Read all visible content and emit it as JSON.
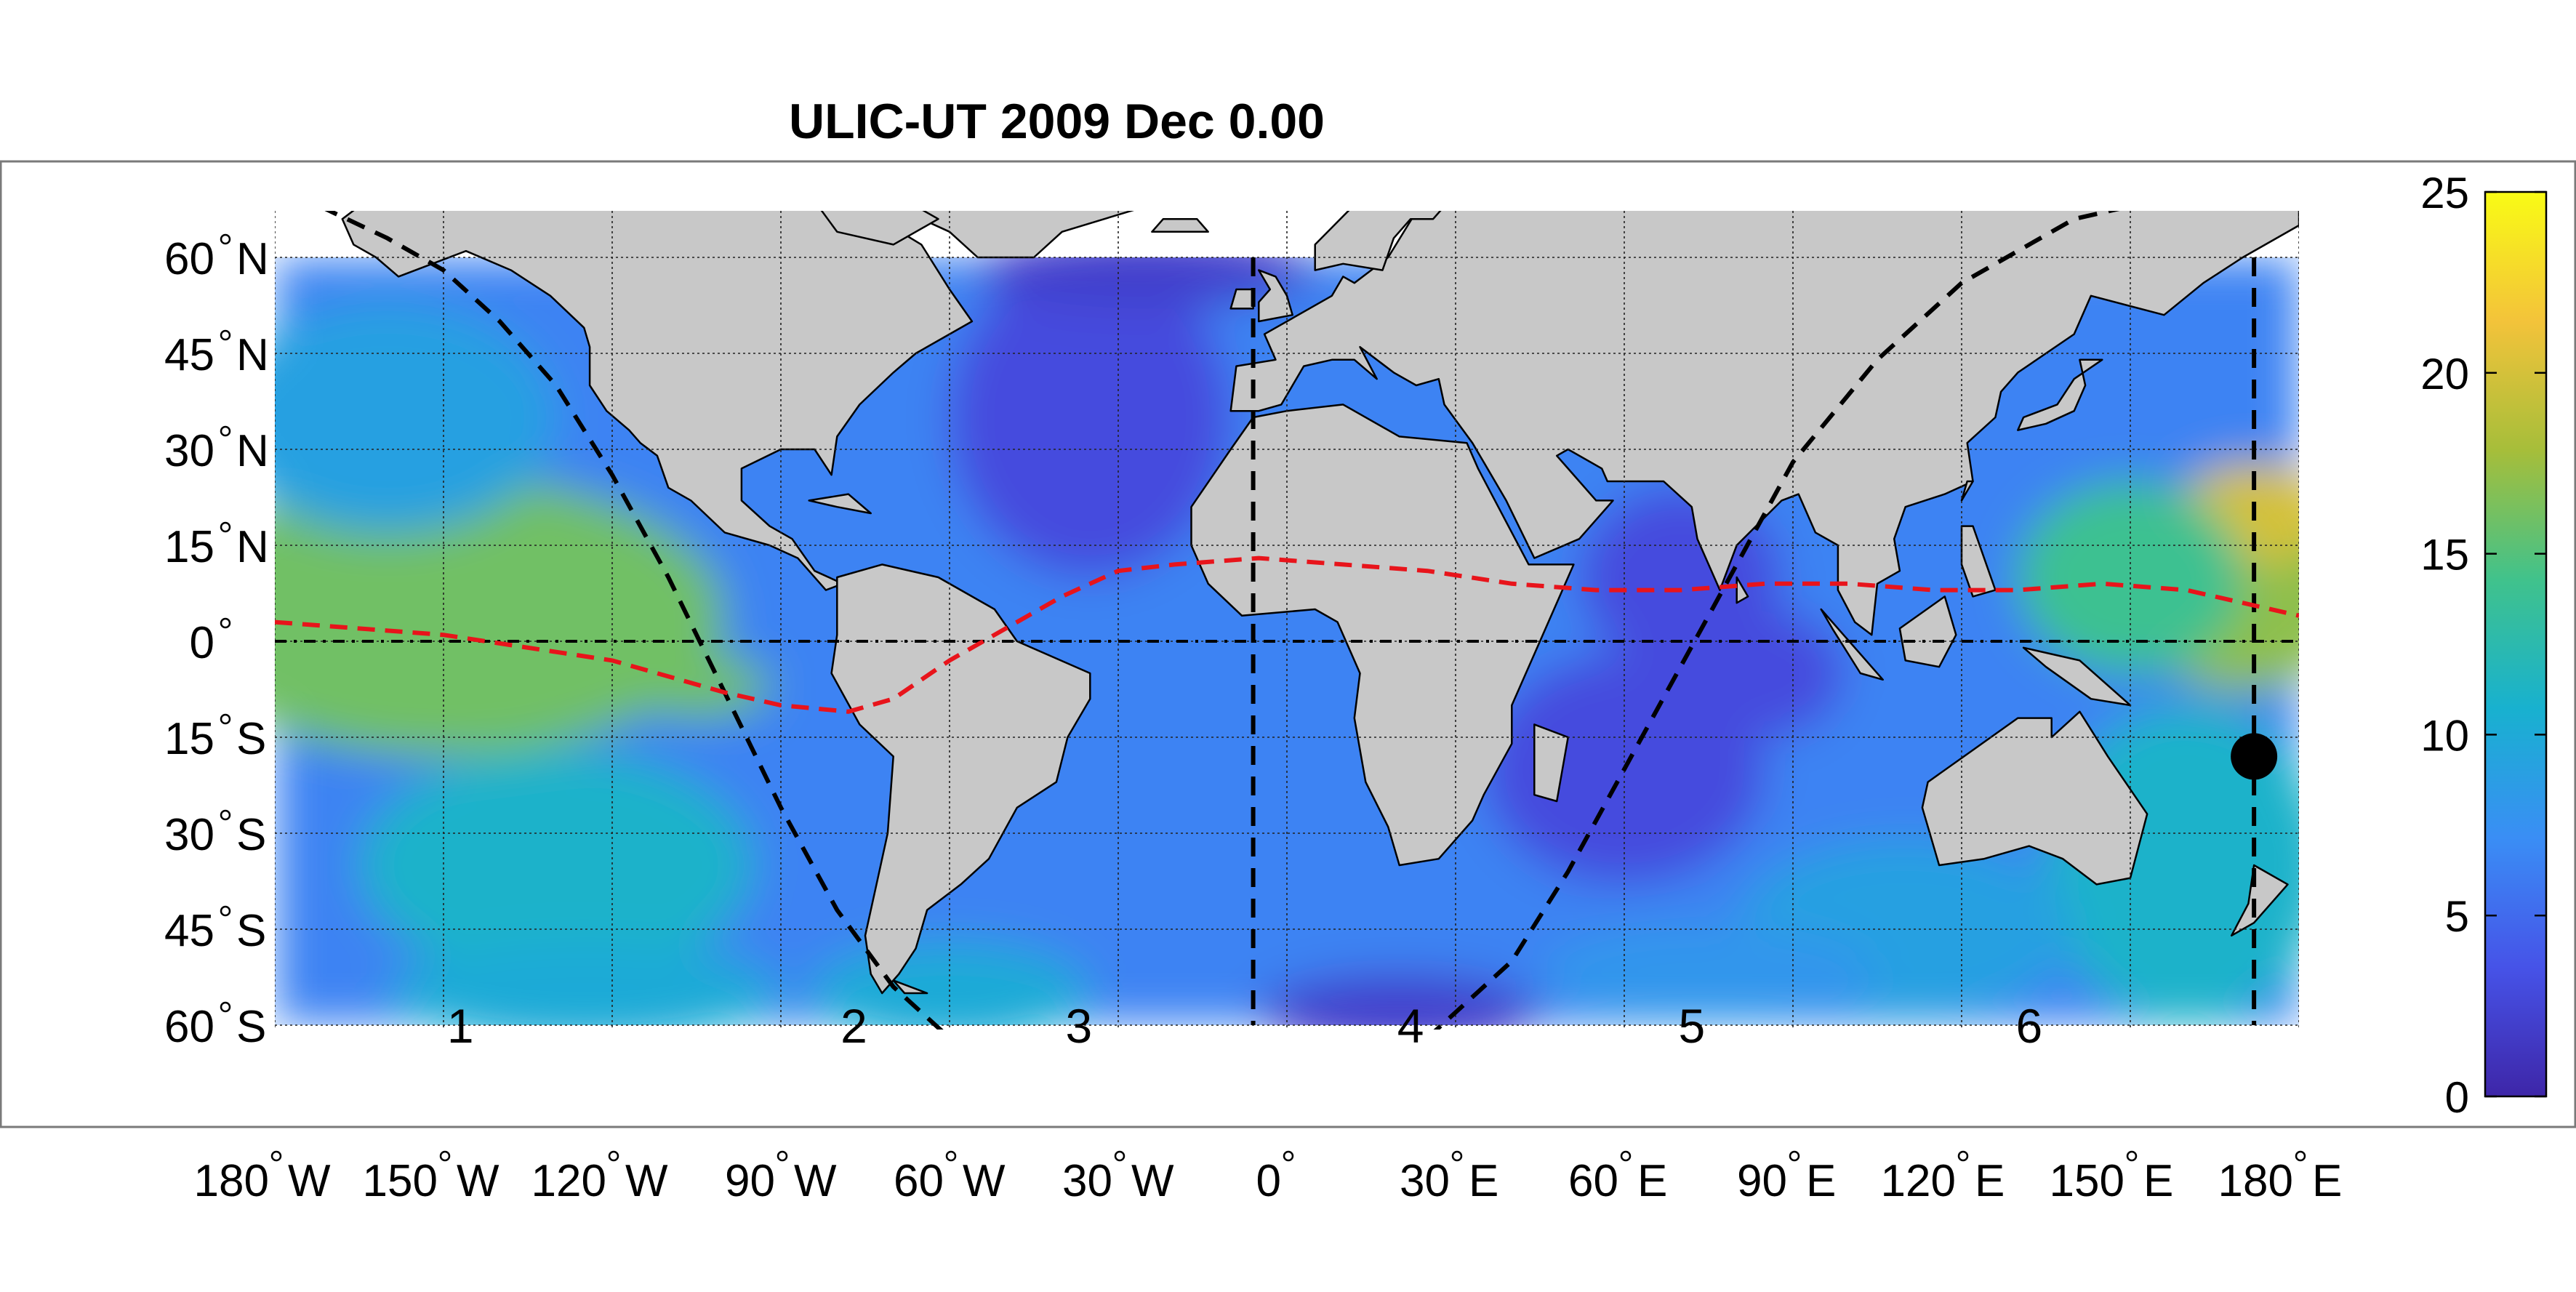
{
  "title": "ULIC-UT 2009 Dec  0.00",
  "map": {
    "type": "global_map_field",
    "projection": "equirectangular",
    "lon_range": [
      -180,
      180
    ],
    "lat_range": [
      -60,
      68
    ],
    "field_lat_range": [
      -60,
      60
    ],
    "lat_ticks": [
      {
        "value": 60,
        "deg": "60",
        "hemi": "N"
      },
      {
        "value": 45,
        "deg": "45",
        "hemi": "N"
      },
      {
        "value": 30,
        "deg": "30",
        "hemi": "N"
      },
      {
        "value": 15,
        "deg": "15",
        "hemi": "N"
      },
      {
        "value": 0,
        "deg": "0",
        "hemi": ""
      },
      {
        "value": -15,
        "deg": "15",
        "hemi": "S"
      },
      {
        "value": -30,
        "deg": "30",
        "hemi": "S"
      },
      {
        "value": -45,
        "deg": "45",
        "hemi": "S"
      },
      {
        "value": -60,
        "deg": "60",
        "hemi": "S"
      }
    ],
    "lon_ticks": [
      {
        "value": -180,
        "deg": "180",
        "hemi": "W"
      },
      {
        "value": -150,
        "deg": "150",
        "hemi": "W"
      },
      {
        "value": -120,
        "deg": "120",
        "hemi": "W"
      },
      {
        "value": -90,
        "deg": "90",
        "hemi": "W"
      },
      {
        "value": -60,
        "deg": "60",
        "hemi": "W"
      },
      {
        "value": -30,
        "deg": "30",
        "hemi": "W"
      },
      {
        "value": 0,
        "deg": "0",
        "hemi": ""
      },
      {
        "value": 30,
        "deg": "30",
        "hemi": "E"
      },
      {
        "value": 60,
        "deg": "60",
        "hemi": "E"
      },
      {
        "value": 90,
        "deg": "90",
        "hemi": "E"
      },
      {
        "value": 120,
        "deg": "120",
        "hemi": "E"
      },
      {
        "value": 150,
        "deg": "150",
        "hemi": "E"
      },
      {
        "value": 180,
        "deg": "180",
        "hemi": "E"
      }
    ],
    "region_labels": [
      {
        "text": "1",
        "lon": -147,
        "lat": -60
      },
      {
        "text": "2",
        "lon": -77,
        "lat": -60
      },
      {
        "text": "3",
        "lon": -37,
        "lat": -60
      },
      {
        "text": "4",
        "lon": 22,
        "lat": -60
      },
      {
        "text": "5",
        "lon": 72,
        "lat": -60
      },
      {
        "text": "6",
        "lon": 132,
        "lat": -60
      }
    ],
    "vertical_dividers_lon": [
      -6,
      172
    ],
    "equator_line_lat": 0,
    "red_curve": [
      [
        -180,
        3
      ],
      [
        -150,
        1
      ],
      [
        -120,
        -3
      ],
      [
        -100,
        -8
      ],
      [
        -90,
        -10
      ],
      [
        -78,
        -11
      ],
      [
        -70,
        -9
      ],
      [
        -60,
        -3
      ],
      [
        -50,
        2
      ],
      [
        -40,
        7
      ],
      [
        -30,
        11
      ],
      [
        -20,
        12
      ],
      [
        -5,
        13
      ],
      [
        10,
        12
      ],
      [
        25,
        11
      ],
      [
        40,
        9
      ],
      [
        55,
        8
      ],
      [
        70,
        8
      ],
      [
        85,
        9
      ],
      [
        100,
        9
      ],
      [
        115,
        8
      ],
      [
        130,
        8
      ],
      [
        145,
        9
      ],
      [
        160,
        8
      ],
      [
        170,
        6
      ],
      [
        180,
        4
      ]
    ],
    "black_curve_a": [
      [
        -172,
        68
      ],
      [
        -160,
        63
      ],
      [
        -150,
        58
      ],
      [
        -140,
        50
      ],
      [
        -130,
        40
      ],
      [
        -120,
        26
      ],
      [
        -110,
        10
      ],
      [
        -100,
        -8
      ],
      [
        -90,
        -26
      ],
      [
        -80,
        -42
      ],
      [
        -70,
        -54
      ],
      [
        -60,
        -62
      ],
      [
        -50,
        -68
      ]
    ],
    "black_curve_b": [
      [
        10,
        -68
      ],
      [
        25,
        -62
      ],
      [
        40,
        -50
      ],
      [
        50,
        -36
      ],
      [
        60,
        -20
      ],
      [
        70,
        -4
      ],
      [
        80,
        12
      ],
      [
        90,
        28
      ],
      [
        105,
        44
      ],
      [
        120,
        56
      ],
      [
        140,
        66
      ],
      [
        150,
        68
      ]
    ],
    "marker": {
      "lon": 172,
      "lat": -18
    },
    "blobs": [
      {
        "lon": -170,
        "lat": 4,
        "rx": 20,
        "ry": 6,
        "v": 23
      },
      {
        "lon": -150,
        "lat": 12,
        "rx": 22,
        "ry": 7,
        "v": 21
      },
      {
        "lon": -150,
        "lat": -6,
        "rx": 24,
        "ry": 8,
        "v": 22
      },
      {
        "lon": -120,
        "lat": -5,
        "rx": 18,
        "ry": 6,
        "v": 20
      },
      {
        "lon": -105,
        "lat": -7,
        "rx": 13,
        "ry": 5,
        "v": 16
      },
      {
        "lon": -150,
        "lat": 4,
        "rx": 50,
        "ry": 22,
        "v": 16
      },
      {
        "lon": -160,
        "lat": 35,
        "rx": 30,
        "ry": 18,
        "v": 9
      },
      {
        "lon": -130,
        "lat": -35,
        "rx": 35,
        "ry": 18,
        "v": 11
      },
      {
        "lon": -125,
        "lat": -55,
        "rx": 35,
        "ry": 8,
        "v": 10
      },
      {
        "lon": 170,
        "lat": 8,
        "rx": 20,
        "ry": 16,
        "v": 17
      },
      {
        "lon": 172,
        "lat": 20,
        "rx": 14,
        "ry": 8,
        "v": 20
      },
      {
        "lon": 150,
        "lat": 10,
        "rx": 20,
        "ry": 15,
        "v": 14
      },
      {
        "lon": 160,
        "lat": -35,
        "rx": 25,
        "ry": 25,
        "v": 11
      },
      {
        "lon": 110,
        "lat": -45,
        "rx": 30,
        "ry": 14,
        "v": 9
      },
      {
        "lon": 75,
        "lat": -52,
        "rx": 30,
        "ry": 8,
        "v": 8
      },
      {
        "lon": -60,
        "lat": -55,
        "rx": 25,
        "ry": 8,
        "v": 10
      },
      {
        "lon": -35,
        "lat": 35,
        "rx": 25,
        "ry": 25,
        "v": 3
      },
      {
        "lon": -25,
        "lat": 58,
        "rx": 30,
        "ry": 6,
        "v": 2
      },
      {
        "lon": 70,
        "lat": 10,
        "rx": 18,
        "ry": 14,
        "v": 3
      },
      {
        "lon": 60,
        "lat": -20,
        "rx": 25,
        "ry": 18,
        "v": 3
      },
      {
        "lon": 20,
        "lat": -58,
        "rx": 25,
        "ry": 6,
        "v": 2
      },
      {
        "lon": 85,
        "lat": -5,
        "rx": 14,
        "ry": 10,
        "v": 3
      }
    ]
  },
  "colorbar": {
    "min": 0,
    "max": 25,
    "ticks": [
      "0",
      "5",
      "10",
      "15",
      "20",
      "25"
    ],
    "colors": [
      "#3e26a8",
      "#4653e8",
      "#3a8ef5",
      "#18b1cf",
      "#40c28c",
      "#a6be3a",
      "#f3c33a",
      "#f9fb15"
    ]
  }
}
